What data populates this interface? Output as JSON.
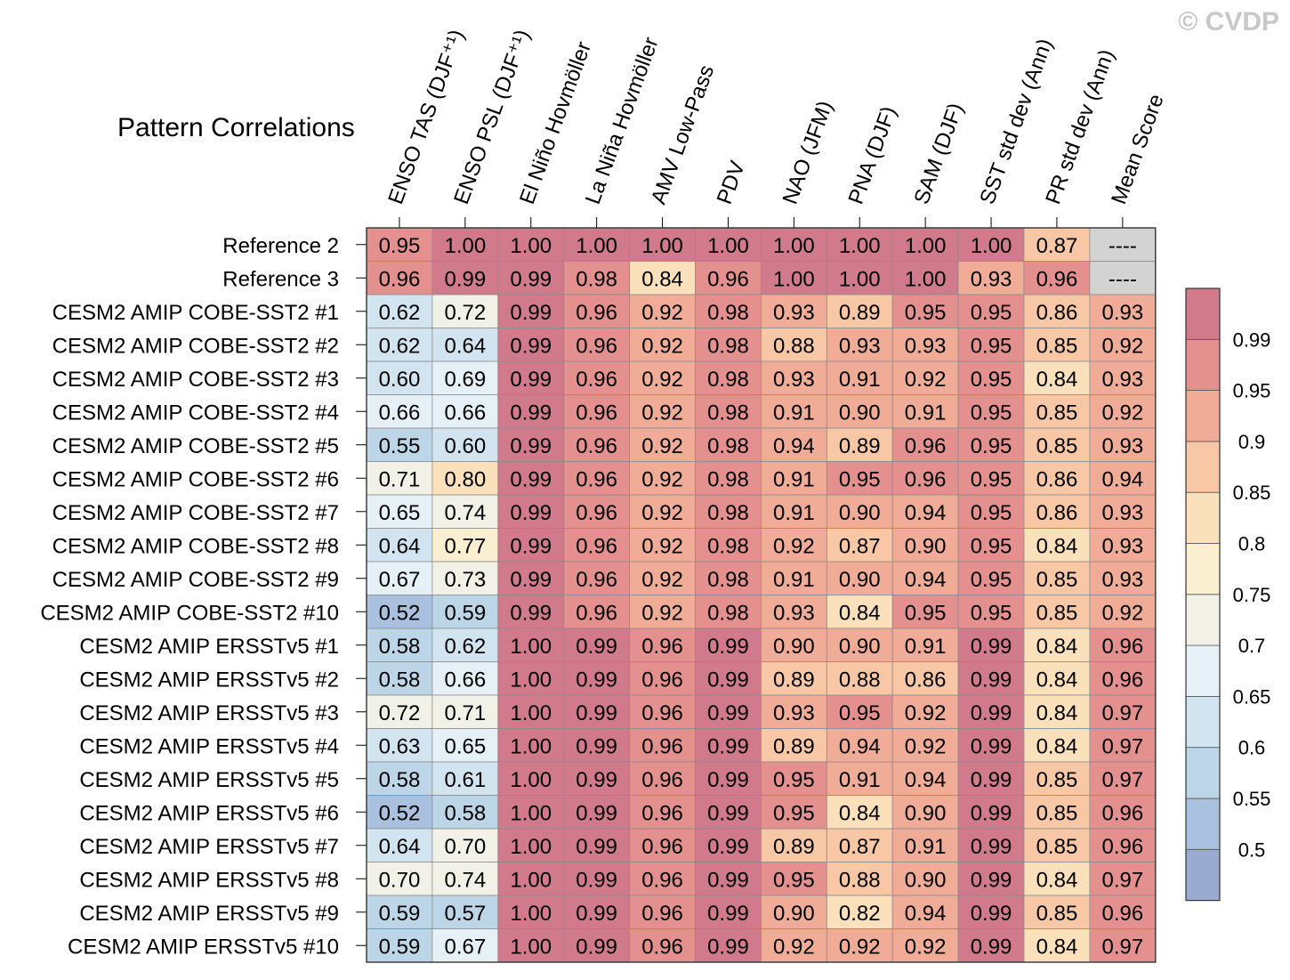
{
  "watermark": "© CVDP",
  "chart_data": {
    "type": "heatmap",
    "title": "Pattern Correlations",
    "columns": [
      "ENSO TAS (DJF⁺¹)",
      "ENSO PSL (DJF⁺¹)",
      "El Niño Hovmöller",
      "La Niña Hovmöller",
      "AMV Low-Pass",
      "PDV",
      "NAO (JFM)",
      "PNA (DJF)",
      "SAM (DJF)",
      "SST std dev (Ann)",
      "PR std dev (Ann)",
      "Mean Score"
    ],
    "rows": [
      "Reference 2",
      "Reference 3",
      "CESM2 AMIP COBE-SST2 #1",
      "CESM2 AMIP COBE-SST2 #2",
      "CESM2 AMIP COBE-SST2 #3",
      "CESM2 AMIP COBE-SST2 #4",
      "CESM2 AMIP COBE-SST2 #5",
      "CESM2 AMIP COBE-SST2 #6",
      "CESM2 AMIP COBE-SST2 #7",
      "CESM2 AMIP COBE-SST2 #8",
      "CESM2 AMIP COBE-SST2 #9",
      "CESM2 AMIP COBE-SST2 #10",
      "CESM2 AMIP ERSSTv5 #1",
      "CESM2 AMIP ERSSTv5 #2",
      "CESM2 AMIP ERSSTv5 #3",
      "CESM2 AMIP ERSSTv5 #4",
      "CESM2 AMIP ERSSTv5 #5",
      "CESM2 AMIP ERSSTv5 #6",
      "CESM2 AMIP ERSSTv5 #7",
      "CESM2 AMIP ERSSTv5 #8",
      "CESM2 AMIP ERSSTv5 #9",
      "CESM2 AMIP ERSSTv5 #10"
    ],
    "values": [
      [
        "0.95",
        "1.00",
        "1.00",
        "1.00",
        "1.00",
        "1.00",
        "1.00",
        "1.00",
        "1.00",
        "1.00",
        "0.87",
        "----"
      ],
      [
        "0.96",
        "0.99",
        "0.99",
        "0.98",
        "0.84",
        "0.96",
        "1.00",
        "1.00",
        "1.00",
        "0.93",
        "0.96",
        "----"
      ],
      [
        "0.62",
        "0.72",
        "0.99",
        "0.96",
        "0.92",
        "0.98",
        "0.93",
        "0.89",
        "0.95",
        "0.95",
        "0.86",
        "0.93"
      ],
      [
        "0.62",
        "0.64",
        "0.99",
        "0.96",
        "0.92",
        "0.98",
        "0.88",
        "0.93",
        "0.93",
        "0.95",
        "0.85",
        "0.92"
      ],
      [
        "0.60",
        "0.69",
        "0.99",
        "0.96",
        "0.92",
        "0.98",
        "0.93",
        "0.91",
        "0.92",
        "0.95",
        "0.84",
        "0.93"
      ],
      [
        "0.66",
        "0.66",
        "0.99",
        "0.96",
        "0.92",
        "0.98",
        "0.91",
        "0.90",
        "0.91",
        "0.95",
        "0.85",
        "0.92"
      ],
      [
        "0.55",
        "0.60",
        "0.99",
        "0.96",
        "0.92",
        "0.98",
        "0.94",
        "0.89",
        "0.96",
        "0.95",
        "0.85",
        "0.93"
      ],
      [
        "0.71",
        "0.80",
        "0.99",
        "0.96",
        "0.92",
        "0.98",
        "0.91",
        "0.95",
        "0.96",
        "0.95",
        "0.86",
        "0.94"
      ],
      [
        "0.65",
        "0.74",
        "0.99",
        "0.96",
        "0.92",
        "0.98",
        "0.91",
        "0.90",
        "0.94",
        "0.95",
        "0.86",
        "0.93"
      ],
      [
        "0.64",
        "0.77",
        "0.99",
        "0.96",
        "0.92",
        "0.98",
        "0.92",
        "0.87",
        "0.90",
        "0.95",
        "0.84",
        "0.93"
      ],
      [
        "0.67",
        "0.73",
        "0.99",
        "0.96",
        "0.92",
        "0.98",
        "0.91",
        "0.90",
        "0.94",
        "0.95",
        "0.85",
        "0.93"
      ],
      [
        "0.52",
        "0.59",
        "0.99",
        "0.96",
        "0.92",
        "0.98",
        "0.93",
        "0.84",
        "0.95",
        "0.95",
        "0.85",
        "0.92"
      ],
      [
        "0.58",
        "0.62",
        "1.00",
        "0.99",
        "0.96",
        "0.99",
        "0.90",
        "0.90",
        "0.91",
        "0.99",
        "0.84",
        "0.96"
      ],
      [
        "0.58",
        "0.66",
        "1.00",
        "0.99",
        "0.96",
        "0.99",
        "0.89",
        "0.88",
        "0.86",
        "0.99",
        "0.84",
        "0.96"
      ],
      [
        "0.72",
        "0.71",
        "1.00",
        "0.99",
        "0.96",
        "0.99",
        "0.93",
        "0.95",
        "0.92",
        "0.99",
        "0.84",
        "0.97"
      ],
      [
        "0.63",
        "0.65",
        "1.00",
        "0.99",
        "0.96",
        "0.99",
        "0.89",
        "0.94",
        "0.92",
        "0.99",
        "0.84",
        "0.97"
      ],
      [
        "0.58",
        "0.61",
        "1.00",
        "0.99",
        "0.96",
        "0.99",
        "0.95",
        "0.91",
        "0.94",
        "0.99",
        "0.85",
        "0.97"
      ],
      [
        "0.52",
        "0.58",
        "1.00",
        "0.99",
        "0.96",
        "0.99",
        "0.95",
        "0.84",
        "0.90",
        "0.99",
        "0.85",
        "0.96"
      ],
      [
        "0.64",
        "0.70",
        "1.00",
        "0.99",
        "0.96",
        "0.99",
        "0.89",
        "0.87",
        "0.91",
        "0.99",
        "0.85",
        "0.96"
      ],
      [
        "0.70",
        "0.74",
        "1.00",
        "0.99",
        "0.96",
        "0.99",
        "0.95",
        "0.88",
        "0.90",
        "0.99",
        "0.84",
        "0.97"
      ],
      [
        "0.59",
        "0.57",
        "1.00",
        "0.99",
        "0.96",
        "0.99",
        "0.90",
        "0.82",
        "0.94",
        "0.99",
        "0.85",
        "0.96"
      ],
      [
        "0.59",
        "0.67",
        "1.00",
        "0.99",
        "0.96",
        "0.99",
        "0.92",
        "0.92",
        "0.92",
        "0.99",
        "0.84",
        "0.97"
      ]
    ],
    "colorbar": {
      "levels": [
        0.5,
        0.55,
        0.6,
        0.65,
        0.7,
        0.75,
        0.8,
        0.85,
        0.9,
        0.95,
        0.99
      ],
      "labels": [
        "0.5",
        "0.55",
        "0.6",
        "0.65",
        "0.7",
        "0.75",
        "0.8",
        "0.85",
        "0.9",
        "0.95",
        "0.99"
      ],
      "colors": [
        "#9aaad0",
        "#a9c1de",
        "#bcd5e7",
        "#d2e4f0",
        "#e5f1f6",
        "#f2f1e7",
        "#fbefd2",
        "#fbe0bc",
        "#f8c8a6",
        "#f1ac97",
        "#e3908e",
        "#d07a8c"
      ],
      "missing_color": "#d3d3d3"
    }
  }
}
